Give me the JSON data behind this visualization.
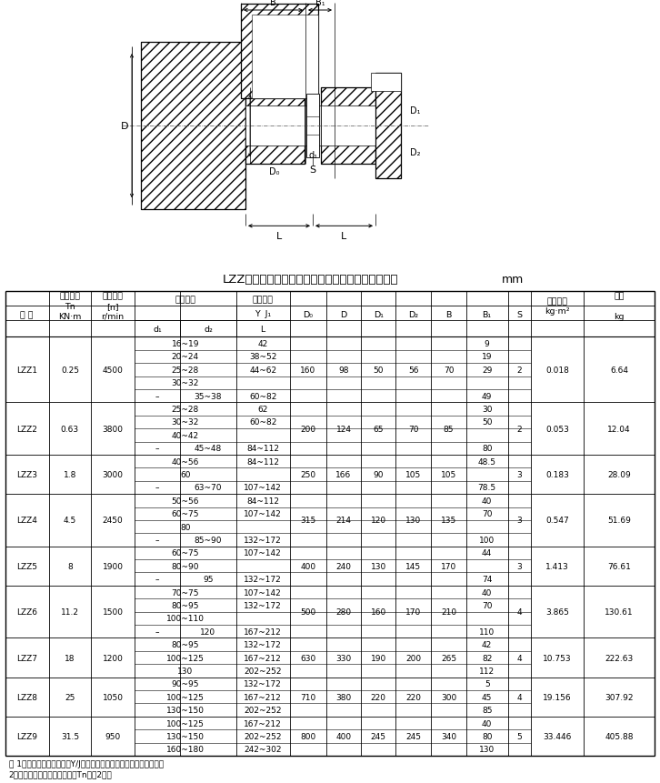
{
  "title_drawing": "LZZ型带制动轮弹性柱销齿式联轴器主要参数与尺寸",
  "title_unit": "mm",
  "notes": [
    "注 1：重量、转动慣量是按Y/J轴轴孔组合型式和最小轴孔的计算値。",
    "2：短时过载不得超过公称转矩Tn値的2倍。"
  ],
  "rows": [
    {
      "model": "LZZ1",
      "Tn": "0.25",
      "n": "4500",
      "shaft_rows": [
        {
          "d1": "16~19",
          "d2": "",
          "L": "42"
        },
        {
          "d1": "20~24",
          "d2": "",
          "L": "38~52"
        },
        {
          "d1": "25~28",
          "d2": "",
          "L": "44~62"
        },
        {
          "d1": "30~32",
          "d2": "",
          "L": ""
        },
        {
          "d1": "–",
          "d2": "35~38",
          "L": "60~82"
        }
      ],
      "B1_vals": [
        "9",
        "19",
        "29",
        "",
        "49"
      ],
      "D0": "160",
      "D": "98",
      "D1": "50",
      "D2": "56",
      "B": "70",
      "S": "2",
      "I": "0.018",
      "m": "6.64"
    },
    {
      "model": "LZZ2",
      "Tn": "0.63",
      "n": "3800",
      "shaft_rows": [
        {
          "d1": "25~28",
          "d2": "",
          "L": "62"
        },
        {
          "d1": "30~32",
          "d2": "",
          "L": "60~82"
        },
        {
          "d1": "40~42",
          "d2": "",
          "L": ""
        },
        {
          "d1": "–",
          "d2": "45~48",
          "L": "84~112"
        }
      ],
      "B1_vals": [
        "30",
        "50",
        "",
        "80"
      ],
      "D0": "200",
      "D": "124",
      "D1": "65",
      "D2": "70",
      "B": "85",
      "S": "2",
      "I": "0.053",
      "m": "12.04"
    },
    {
      "model": "LZZ3",
      "Tn": "1.8",
      "n": "3000",
      "shaft_rows": [
        {
          "d1": "40~56",
          "d2": "",
          "L": "84~112"
        },
        {
          "d1": "60",
          "d2": "",
          "L": ""
        },
        {
          "d1": "–",
          "d2": "63~70",
          "L": "107~142"
        }
      ],
      "B1_vals": [
        "48.5",
        "",
        "78.5"
      ],
      "D0": "250",
      "D": "166",
      "D1": "90",
      "D2": "105",
      "B": "105",
      "S": "3",
      "I": "0.183",
      "m": "28.09"
    },
    {
      "model": "LZZ4",
      "Tn": "4.5",
      "n": "2450",
      "shaft_rows": [
        {
          "d1": "50~56",
          "d2": "",
          "L": "84~112"
        },
        {
          "d1": "60~75",
          "d2": "",
          "L": "107~142"
        },
        {
          "d1": "80",
          "d2": "",
          "L": ""
        },
        {
          "d1": "–",
          "d2": "85~90",
          "L": "132~172"
        }
      ],
      "B1_vals": [
        "40",
        "70",
        "",
        "100"
      ],
      "D0": "315",
      "D": "214",
      "D1": "120",
      "D2": "130",
      "B": "135",
      "S": "3",
      "I": "0.547",
      "m": "51.69"
    },
    {
      "model": "LZZ5",
      "Tn": "8",
      "n": "1900",
      "shaft_rows": [
        {
          "d1": "60~75",
          "d2": "",
          "L": "107~142"
        },
        {
          "d1": "80~90",
          "d2": "",
          "L": ""
        },
        {
          "d1": "–",
          "d2": "95",
          "L": "132~172"
        }
      ],
      "B1_vals": [
        "44",
        "",
        "74"
      ],
      "D0": "400",
      "D": "240",
      "D1": "130",
      "D2": "145",
      "B": "170",
      "S": "3",
      "I": "1.413",
      "m": "76.61"
    },
    {
      "model": "LZZ6",
      "Tn": "11.2",
      "n": "1500",
      "shaft_rows": [
        {
          "d1": "70~75",
          "d2": "",
          "L": "107~142"
        },
        {
          "d1": "80~95",
          "d2": "",
          "L": "132~172"
        },
        {
          "d1": "100~110",
          "d2": "",
          "L": ""
        },
        {
          "d1": "–",
          "d2": "120",
          "L": "167~212"
        }
      ],
      "B1_vals": [
        "40",
        "70",
        "",
        "110"
      ],
      "D0": "500",
      "D": "280",
      "D1": "160",
      "D2": "170",
      "B": "210",
      "S": "4",
      "I": "3.865",
      "m": "130.61"
    },
    {
      "model": "LZZ7",
      "Tn": "18",
      "n": "1200",
      "shaft_rows": [
        {
          "d1": "80~95",
          "d2": "",
          "L": "132~172"
        },
        {
          "d1": "100~125",
          "d2": "",
          "L": "167~212"
        },
        {
          "d1": "130",
          "d2": "",
          "L": "202~252"
        }
      ],
      "B1_vals": [
        "42",
        "82",
        "112"
      ],
      "D0": "630",
      "D": "330",
      "D1": "190",
      "D2": "200",
      "B": "265",
      "S": "4",
      "I": "10.753",
      "m": "222.63"
    },
    {
      "model": "LZZ8",
      "Tn": "25",
      "n": "1050",
      "shaft_rows": [
        {
          "d1": "90~95",
          "d2": "",
          "L": "132~172"
        },
        {
          "d1": "100~125",
          "d2": "",
          "L": "167~212"
        },
        {
          "d1": "130~150",
          "d2": "",
          "L": "202~252"
        }
      ],
      "B1_vals": [
        "5",
        "45",
        "85"
      ],
      "D0": "710",
      "D": "380",
      "D1": "220",
      "D2": "220",
      "B": "300",
      "S": "4",
      "I": "19.156",
      "m": "307.92"
    },
    {
      "model": "LZZ9",
      "Tn": "31.5",
      "n": "950",
      "shaft_rows": [
        {
          "d1": "100~125",
          "d2": "",
          "L": "167~212"
        },
        {
          "d1": "130~150",
          "d2": "",
          "L": "202~252"
        },
        {
          "d1": "160~180",
          "d2": "",
          "L": "242~302"
        }
      ],
      "B1_vals": [
        "40",
        "80",
        "130"
      ],
      "D0": "800",
      "D": "400",
      "D1": "245",
      "D2": "245",
      "B": "340",
      "S": "5",
      "I": "33.446",
      "m": "405.88"
    }
  ],
  "bg_color": "#ffffff",
  "line_color": "#000000"
}
